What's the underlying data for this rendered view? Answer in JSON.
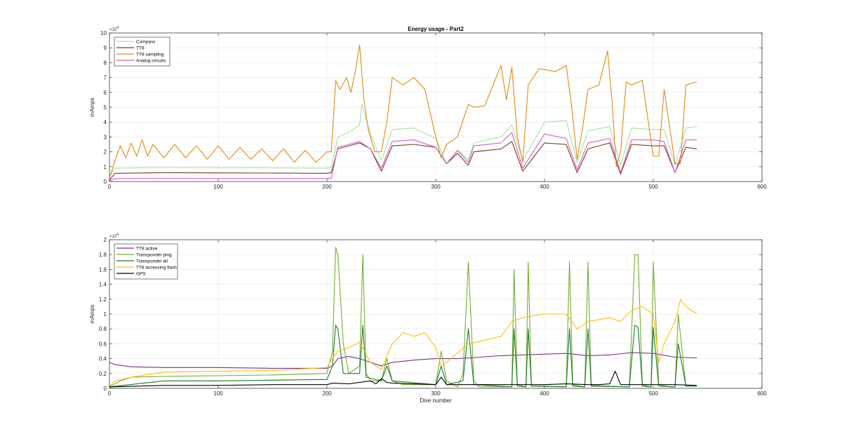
{
  "chart_data": [
    {
      "type": "line",
      "title": "Energy usage - Part2",
      "xlabel": "",
      "ylabel": "mAmps",
      "xlim": [
        0,
        600
      ],
      "ylim": [
        0,
        100000
      ],
      "x_ticks": [
        0,
        100,
        200,
        300,
        400,
        500,
        600
      ],
      "y_ticks": [
        0,
        10000,
        20000,
        30000,
        40000,
        50000,
        60000,
        70000,
        80000,
        90000,
        100000
      ],
      "y_tick_labels": [
        "0",
        "1",
        "2",
        "3",
        "4",
        "5",
        "6",
        "7",
        "8",
        "9",
        "10"
      ],
      "y_exponent": "×10",
      "y_exponent_power": "4",
      "grid": true,
      "legend_position": "top-left",
      "series": [
        {
          "name": "Compass",
          "color": "#9de89d",
          "x": [
            0,
            5,
            50,
            100,
            150,
            200,
            204,
            210,
            220,
            230,
            232,
            240,
            250,
            260,
            280,
            300,
            310,
            320,
            330,
            335,
            360,
            370,
            380,
            400,
            420,
            430,
            440,
            460,
            470,
            480,
            500,
            510,
            520,
            530,
            540
          ],
          "y": [
            3000,
            9000,
            9500,
            9300,
            9200,
            9000,
            9500,
            30000,
            33000,
            38000,
            52000,
            32000,
            14000,
            35000,
            36000,
            29000,
            12000,
            21000,
            15000,
            26000,
            30000,
            38000,
            14000,
            40000,
            41000,
            13000,
            34000,
            37000,
            11000,
            36000,
            35000,
            35000,
            11000,
            36000,
            37000
          ]
        },
        {
          "name": "TT8",
          "color": "#7a3a1c",
          "x": [
            0,
            5,
            50,
            100,
            150,
            200,
            204,
            210,
            220,
            230,
            240,
            250,
            260,
            280,
            300,
            310,
            320,
            330,
            335,
            360,
            370,
            380,
            400,
            420,
            430,
            440,
            460,
            470,
            480,
            500,
            510,
            520,
            530,
            540
          ],
          "y": [
            1000,
            5500,
            6000,
            5800,
            5700,
            5500,
            6000,
            22000,
            24000,
            26000,
            22000,
            7000,
            24000,
            25000,
            23000,
            12000,
            19000,
            11000,
            20000,
            22000,
            27000,
            7000,
            26000,
            25000,
            6000,
            22000,
            26000,
            5000,
            25000,
            24000,
            24000,
            6000,
            23000,
            22000
          ]
        },
        {
          "name": "TT8 sampling",
          "color": "#e08a12",
          "x": [
            0,
            5,
            10,
            15,
            20,
            25,
            30,
            35,
            40,
            50,
            60,
            70,
            80,
            90,
            100,
            110,
            120,
            130,
            140,
            150,
            160,
            170,
            180,
            190,
            200,
            204,
            208,
            212,
            218,
            222,
            226,
            230,
            234,
            238,
            244,
            250,
            255,
            260,
            270,
            280,
            290,
            300,
            305,
            310,
            320,
            330,
            335,
            345,
            360,
            365,
            370,
            375,
            380,
            385,
            395,
            410,
            420,
            425,
            430,
            435,
            440,
            450,
            458,
            462,
            466,
            470,
            475,
            480,
            490,
            500,
            505,
            510,
            520,
            525,
            530,
            540
          ],
          "y": [
            2000,
            14000,
            24000,
            16000,
            26000,
            17000,
            28000,
            17000,
            25000,
            16000,
            25000,
            16000,
            24000,
            15000,
            24000,
            15000,
            23000,
            15000,
            22000,
            14000,
            22000,
            13000,
            21000,
            13000,
            20000,
            20000,
            68000,
            62000,
            70000,
            60000,
            74000,
            92000,
            55000,
            35000,
            20000,
            20000,
            40000,
            70000,
            65000,
            70000,
            62000,
            30000,
            16000,
            25000,
            30000,
            52000,
            50000,
            51000,
            78000,
            55000,
            77000,
            30000,
            13000,
            65000,
            76000,
            74000,
            78000,
            50000,
            15000,
            36000,
            62000,
            65000,
            88000,
            55000,
            10000,
            20000,
            67000,
            65000,
            68000,
            17000,
            17000,
            62000,
            12000,
            12000,
            65000,
            67000
          ]
        },
        {
          "name": "Analog circuits",
          "color": "#d45fc0",
          "x": [
            0,
            5,
            50,
            100,
            150,
            200,
            204,
            210,
            220,
            230,
            240,
            250,
            260,
            280,
            300,
            310,
            320,
            330,
            335,
            360,
            370,
            380,
            400,
            420,
            430,
            440,
            460,
            470,
            480,
            500,
            510,
            520,
            530,
            540
          ],
          "y": [
            500,
            2000,
            2100,
            2000,
            2000,
            2000,
            2300,
            23000,
            25000,
            27000,
            22000,
            9000,
            27000,
            28000,
            23000,
            12000,
            21000,
            13000,
            24000,
            26000,
            33000,
            9000,
            32000,
            29000,
            8000,
            26000,
            29000,
            6000,
            28000,
            28000,
            27000,
            6000,
            28000,
            28000
          ]
        }
      ]
    },
    {
      "type": "line",
      "title": "",
      "xlabel": "Dive number",
      "ylabel": "mAmps",
      "xlim": [
        0,
        600
      ],
      "ylim": [
        0,
        20000
      ],
      "x_ticks": [
        0,
        100,
        200,
        300,
        400,
        500,
        600
      ],
      "y_ticks": [
        0,
        2000,
        4000,
        6000,
        8000,
        10000,
        12000,
        14000,
        16000,
        18000,
        20000
      ],
      "y_tick_labels": [
        "0",
        "0.2",
        "0.4",
        "0.6",
        "0.8",
        "1",
        "1.2",
        "1.4",
        "1.6",
        "1.8",
        "2"
      ],
      "y_exponent": "×10",
      "y_exponent_power": "4",
      "grid": true,
      "legend_position": "top-left",
      "series": [
        {
          "name": "TT8 active",
          "color": "#7e2f8e",
          "x": [
            0,
            5,
            20,
            50,
            100,
            150,
            200,
            205,
            210,
            220,
            230,
            240,
            250,
            260,
            280,
            300,
            320,
            340,
            360,
            380,
            400,
            420,
            440,
            460,
            480,
            500,
            520,
            540
          ],
          "y": [
            3500,
            3200,
            2900,
            2800,
            2800,
            2700,
            2700,
            3000,
            4000,
            4300,
            4000,
            3500,
            3000,
            3500,
            3800,
            4000,
            4000,
            4200,
            4400,
            4500,
            4600,
            4700,
            4400,
            4500,
            4800,
            4700,
            4200,
            4100
          ]
        },
        {
          "name": "Transponder ping",
          "color": "#77ac30",
          "x": [
            0,
            10,
            20,
            50,
            100,
            150,
            200,
            205,
            208,
            210,
            215,
            220,
            230,
            233,
            236,
            240,
            250,
            255,
            260,
            270,
            300,
            305,
            310,
            320,
            325,
            330,
            335,
            340,
            350,
            370,
            372,
            375,
            383,
            385,
            388,
            400,
            420,
            423,
            426,
            437,
            440,
            443,
            460,
            478,
            483,
            486,
            490,
            498,
            500,
            505,
            515,
            520,
            523,
            530,
            540
          ],
          "y": [
            200,
            1000,
            1500,
            1600,
            1700,
            1800,
            2000,
            5000,
            19000,
            18000,
            6000,
            2000,
            3000,
            18000,
            2000,
            1000,
            1000,
            4000,
            1000,
            500,
            500,
            5000,
            1000,
            200,
            2000,
            17000,
            1000,
            200,
            200,
            200,
            16000,
            500,
            200,
            17000,
            300,
            300,
            200,
            17000,
            500,
            200,
            17000,
            400,
            300,
            200,
            18000,
            18000,
            500,
            200,
            17000,
            500,
            200,
            200,
            10000,
            300,
            300
          ]
        },
        {
          "name": "Transponder all",
          "color": "#1a7a2e",
          "x": [
            0,
            50,
            100,
            150,
            200,
            205,
            208,
            210,
            215,
            230,
            233,
            236,
            250,
            255,
            260,
            300,
            305,
            310,
            325,
            330,
            335,
            370,
            372,
            375,
            383,
            385,
            388,
            420,
            423,
            426,
            437,
            440,
            443,
            478,
            483,
            486,
            490,
            498,
            500,
            505,
            520,
            523,
            530,
            540
          ],
          "y": [
            200,
            1000,
            1000,
            1100,
            1200,
            3000,
            8500,
            8000,
            2000,
            2000,
            8500,
            1500,
            1000,
            3000,
            1000,
            500,
            3000,
            500,
            1000,
            8000,
            500,
            200,
            8000,
            300,
            200,
            8000,
            300,
            200,
            8000,
            300,
            200,
            8000,
            300,
            200,
            8500,
            8200,
            300,
            200,
            8200,
            300,
            200,
            6000,
            300,
            300
          ]
        },
        {
          "name": "TT8 accessing flash",
          "color": "#ffc000",
          "x": [
            0,
            5,
            20,
            50,
            100,
            150,
            200,
            205,
            210,
            220,
            230,
            240,
            250,
            260,
            270,
            280,
            290,
            300,
            305,
            310,
            330,
            340,
            360,
            370,
            380,
            390,
            400,
            420,
            430,
            440,
            460,
            470,
            480,
            490,
            500,
            505,
            510,
            520,
            525,
            530,
            540
          ],
          "y": [
            300,
            1000,
            1500,
            2200,
            2300,
            2400,
            2800,
            4000,
            5000,
            5500,
            6200,
            3500,
            2500,
            6000,
            7500,
            7000,
            7500,
            5500,
            3000,
            3500,
            6000,
            6300,
            7000,
            9000,
            9500,
            9800,
            10000,
            10000,
            8000,
            9000,
            9500,
            9000,
            10500,
            11000,
            10000,
            3500,
            6000,
            9000,
            12000,
            11000,
            10000
          ]
        },
        {
          "name": "GPS",
          "color": "#000000",
          "x": [
            0,
            50,
            100,
            150,
            200,
            205,
            220,
            240,
            245,
            250,
            255,
            260,
            300,
            305,
            310,
            350,
            400,
            420,
            440,
            450,
            460,
            465,
            470,
            480,
            500,
            520,
            540
          ],
          "y": [
            200,
            400,
            400,
            500,
            500,
            700,
            600,
            1000,
            600,
            1300,
            800,
            700,
            500,
            1500,
            500,
            500,
            500,
            600,
            500,
            500,
            600,
            2300,
            500,
            500,
            500,
            500,
            400
          ]
        }
      ]
    }
  ]
}
